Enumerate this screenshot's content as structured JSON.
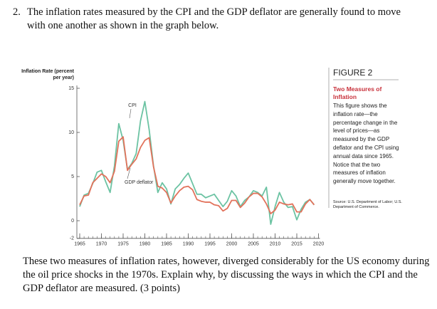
{
  "question": {
    "number": "2.",
    "text": "The inflation rates measured by the CPI and the GDP deflator are generally found to move with one another as shown in the graph below."
  },
  "figure": {
    "label": "FIGURE 2",
    "title": "Two Measures of Inflation",
    "description": "This figure shows the inflation rate—the percentage change in the level of prices—as measured by the GDP deflator and the CPI using annual data since 1965. Notice that the two measures of inflation generally move together.",
    "source": "Source: U.S. Department of Labor; U.S. Department of Commerce."
  },
  "chart_data": {
    "type": "line",
    "ylabel": "Inflation Rate (percent per year)",
    "x": [
      1965,
      1966,
      1967,
      1968,
      1969,
      1970,
      1971,
      1972,
      1973,
      1974,
      1975,
      1976,
      1977,
      1978,
      1979,
      1980,
      1981,
      1982,
      1983,
      1984,
      1985,
      1986,
      1987,
      1988,
      1989,
      1990,
      1991,
      1992,
      1993,
      1994,
      1995,
      1996,
      1997,
      1998,
      1999,
      2000,
      2001,
      2002,
      2003,
      2004,
      2005,
      2006,
      2007,
      2008,
      2009,
      2010,
      2011,
      2012,
      2013,
      2014,
      2015,
      2016,
      2017,
      2018,
      2019
    ],
    "series": [
      {
        "name": "CPI",
        "color": "#6cc3a3",
        "values": [
          1.6,
          2.9,
          3.1,
          4.2,
          5.5,
          5.7,
          4.4,
          3.2,
          6.2,
          11.0,
          9.1,
          5.8,
          6.5,
          7.6,
          11.3,
          13.5,
          10.3,
          6.2,
          3.2,
          4.3,
          3.6,
          1.9,
          3.6,
          4.1,
          4.8,
          5.4,
          4.2,
          3.0,
          3.0,
          2.6,
          2.8,
          3.0,
          2.3,
          1.6,
          2.2,
          3.4,
          2.8,
          1.6,
          2.3,
          2.7,
          3.4,
          3.2,
          2.8,
          3.8,
          -0.4,
          1.6,
          3.2,
          2.1,
          1.5,
          1.6,
          0.1,
          1.3,
          2.1,
          2.4,
          1.8
        ]
      },
      {
        "name": "GDP deflator",
        "color": "#e2725b",
        "values": [
          1.8,
          2.8,
          2.9,
          4.3,
          4.8,
          5.3,
          5.0,
          4.3,
          5.6,
          9.0,
          9.5,
          5.7,
          6.4,
          7.0,
          8.3,
          9.1,
          9.4,
          6.1,
          3.9,
          3.7,
          3.2,
          2.0,
          2.8,
          3.4,
          3.8,
          3.9,
          3.5,
          2.4,
          2.2,
          2.1,
          2.1,
          1.8,
          1.7,
          1.1,
          1.4,
          2.3,
          2.3,
          1.5,
          2.0,
          2.7,
          3.1,
          3.1,
          2.7,
          1.9,
          0.8,
          1.2,
          2.1,
          1.9,
          1.8,
          1.9,
          1.0,
          1.0,
          1.9,
          2.4,
          1.8
        ]
      }
    ],
    "xlim": [
      1965,
      2020
    ],
    "xticks": [
      1965,
      1970,
      1975,
      1980,
      1985,
      1990,
      1995,
      2000,
      2005,
      2010,
      2015,
      2020
    ],
    "ylim": [
      -2,
      15
    ],
    "yticks": [
      -2,
      0,
      5,
      10,
      15
    ]
  },
  "prompt": "These two measures of inflation rates, however, diverged considerably for the US economy during the oil price shocks in the 1970s. Explain why, by discussing the ways in which the CPI and the GDP deflator are measured. (3 points)"
}
